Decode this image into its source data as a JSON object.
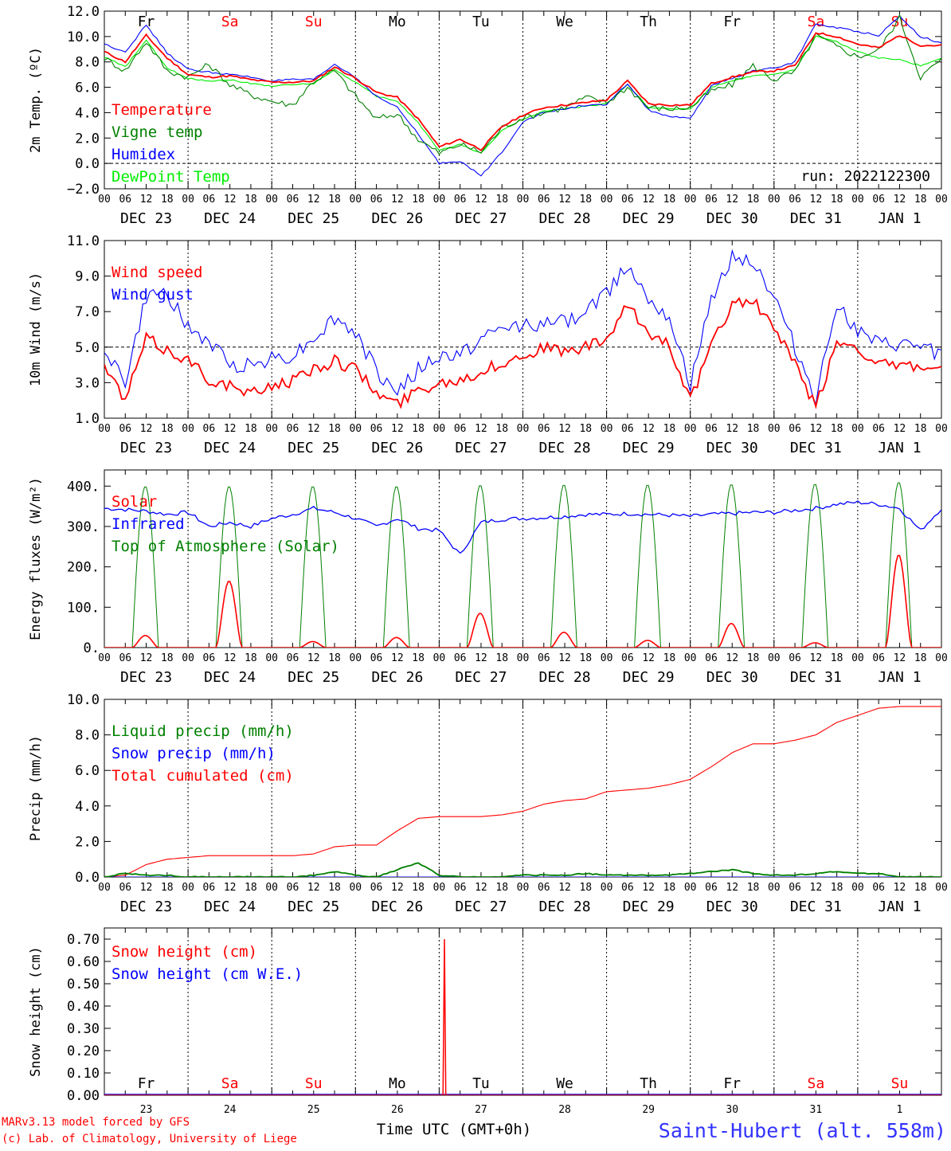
{
  "chart_data": [
    {
      "type": "line",
      "ylabel": "2m Temp. (ºC)",
      "ylim": [
        -2,
        12
      ],
      "yticks": [
        -2,
        0,
        2,
        4,
        6,
        8,
        10,
        12
      ],
      "ytick_labels": [
        "−2.0",
        "0.0",
        "2.0",
        "4.0",
        "6.0",
        "8.0",
        "10.0",
        "12.0"
      ],
      "dashed_reference": 0,
      "day_names_top": [
        "Fr",
        "Sa",
        "Su",
        "Mo",
        "Tu",
        "We",
        "Th",
        "Fr",
        "Sa",
        "Su"
      ],
      "weekend_color": "#ff0000",
      "annotation": "run: 2022122300",
      "x_hours": [
        0,
        6,
        12,
        18,
        24,
        30,
        36,
        42,
        48,
        54,
        60,
        66,
        72,
        78,
        84,
        90,
        96,
        102,
        108,
        114,
        120,
        126,
        132,
        138,
        144,
        150,
        156,
        162,
        168,
        174,
        180,
        186,
        192,
        198,
        204,
        210,
        216,
        222,
        228,
        234,
        240
      ],
      "series": [
        {
          "name": "Temperature",
          "color": "#ff0000",
          "values": [
            8.8,
            8.0,
            10.1,
            8.3,
            7.0,
            6.8,
            6.9,
            6.6,
            6.4,
            6.4,
            6.5,
            7.6,
            6.7,
            5.6,
            5.2,
            3.5,
            1.3,
            1.9,
            1.1,
            2.9,
            3.8,
            4.4,
            4.6,
            4.8,
            5.0,
            6.5,
            4.7,
            4.6,
            4.6,
            6.3,
            6.8,
            7.2,
            7.3,
            7.7,
            10.3,
            10.0,
            9.4,
            9.1,
            10.1,
            9.3,
            9.3
          ]
        },
        {
          "name": "Vigne temp",
          "color": "#008000",
          "values": [
            8.3,
            7.3,
            9.6,
            7.3,
            6.8,
            7.8,
            6.2,
            5.4,
            4.9,
            4.6,
            6.5,
            7.3,
            5.3,
            3.5,
            3.9,
            1.9,
            0.8,
            1.5,
            0.9,
            2.8,
            3.6,
            4.0,
            4.4,
            5.2,
            4.8,
            6.0,
            4.4,
            4.3,
            4.4,
            5.7,
            6.2,
            7.7,
            6.6,
            7.2,
            10.1,
            9.2,
            8.4,
            8.9,
            11.5,
            6.8,
            8.2
          ]
        },
        {
          "name": "Humidex",
          "color": "#0000ff",
          "values": [
            9.4,
            8.8,
            10.9,
            8.7,
            7.4,
            7.2,
            7.0,
            6.8,
            6.5,
            6.6,
            6.6,
            7.8,
            6.8,
            5.3,
            4.4,
            2.3,
            0.0,
            0.2,
            -1.0,
            0.9,
            3.3,
            4.0,
            4.3,
            4.6,
            4.6,
            6.3,
            4.2,
            3.7,
            3.5,
            6.1,
            6.7,
            7.3,
            7.5,
            8.0,
            11.0,
            10.7,
            10.4,
            10.1,
            11.6,
            10.0,
            9.5
          ]
        },
        {
          "name": "DewPoint Temp",
          "color": "#00ee00",
          "values": [
            8.4,
            7.6,
            9.7,
            7.5,
            6.7,
            6.5,
            6.6,
            6.3,
            6.1,
            6.2,
            6.3,
            7.4,
            6.4,
            5.3,
            4.9,
            3.2,
            1.0,
            1.5,
            0.8,
            2.6,
            3.5,
            4.1,
            4.3,
            4.5,
            4.7,
            6.2,
            4.4,
            4.3,
            4.3,
            6.0,
            6.5,
            6.9,
            7.0,
            7.4,
            10.0,
            9.6,
            8.8,
            8.3,
            8.2,
            7.7,
            8.3
          ]
        }
      ]
    },
    {
      "type": "line",
      "ylabel": "10m Wind (m/s)",
      "ylim": [
        1,
        11
      ],
      "yticks": [
        1,
        3,
        5,
        7,
        9,
        11
      ],
      "ytick_labels": [
        "1.0",
        "3.0",
        "5.0",
        "7.0",
        "9.0",
        "11.0"
      ],
      "dashed_reference": 5,
      "x_hours": [
        0,
        6,
        12,
        18,
        24,
        30,
        36,
        42,
        48,
        54,
        60,
        66,
        72,
        78,
        84,
        90,
        96,
        102,
        108,
        114,
        120,
        126,
        132,
        138,
        144,
        150,
        156,
        162,
        168,
        174,
        180,
        186,
        192,
        198,
        204,
        210,
        216,
        222,
        228,
        234,
        240
      ],
      "series": [
        {
          "name": "Wind speed",
          "color": "#ff0000",
          "values": [
            3.9,
            2.0,
            5.5,
            4.8,
            4.3,
            3.2,
            2.8,
            2.3,
            2.9,
            3.1,
            3.8,
            4.2,
            3.8,
            2.4,
            1.8,
            2.6,
            3.0,
            3.2,
            3.6,
            4.1,
            4.5,
            5.0,
            4.7,
            5.0,
            5.4,
            7.3,
            5.8,
            5.2,
            2.0,
            5.0,
            7.5,
            7.6,
            6.1,
            4.0,
            1.6,
            5.3,
            5.0,
            4.0,
            3.9,
            3.9,
            3.6
          ]
        },
        {
          "name": "Wind gust",
          "color": "#0000ff",
          "values": [
            5.0,
            3.0,
            7.8,
            8.1,
            6.0,
            5.3,
            4.0,
            4.0,
            4.4,
            4.5,
            5.5,
            6.6,
            5.8,
            3.6,
            2.5,
            3.7,
            4.4,
            4.6,
            5.4,
            6.0,
            6.3,
            6.3,
            6.4,
            7.1,
            8.0,
            9.7,
            7.8,
            6.8,
            2.8,
            7.6,
            10.2,
            9.8,
            7.8,
            5.0,
            2.1,
            7.5,
            5.8,
            5.1,
            5.1,
            5.0,
            4.6
          ]
        }
      ]
    },
    {
      "type": "line",
      "ylabel": "Energy fluxes (W/m²)",
      "ylim": [
        0,
        440
      ],
      "yticks": [
        0,
        100,
        200,
        300,
        400
      ],
      "ytick_labels": [
        "0.",
        "100.",
        "200.",
        "300.",
        "400."
      ],
      "infrared_hours": [
        0,
        6,
        12,
        18,
        24,
        30,
        36,
        42,
        48,
        54,
        60,
        66,
        72,
        78,
        84,
        90,
        96,
        102,
        108,
        114,
        120,
        126,
        132,
        138,
        144,
        150,
        156,
        162,
        168,
        174,
        180,
        186,
        192,
        198,
        204,
        210,
        216,
        222,
        228,
        234,
        240
      ],
      "series": [
        {
          "name": "Solar",
          "color": "#ff0000",
          "daily_peaks": [
            30,
            165,
            15,
            25,
            85,
            38,
            18,
            60,
            12,
            230
          ]
        },
        {
          "name": "Infrared",
          "color": "#0000ff",
          "values": [
            345,
            342,
            338,
            330,
            335,
            300,
            310,
            300,
            320,
            330,
            345,
            335,
            320,
            300,
            320,
            295,
            290,
            230,
            310,
            318,
            320,
            322,
            325,
            330,
            330,
            332,
            330,
            328,
            325,
            330,
            332,
            335,
            335,
            340,
            345,
            355,
            360,
            355,
            345,
            290,
            345
          ]
        },
        {
          "name": "Top of Atmosphere (Solar)",
          "color": "#008000",
          "daily_peaks": [
            400,
            400,
            400,
            400,
            403,
            404,
            404,
            405,
            406,
            410
          ]
        }
      ]
    },
    {
      "type": "line",
      "ylabel": "Precip (mm/h)",
      "ylim": [
        0,
        10
      ],
      "yticks": [
        0,
        2,
        4,
        6,
        8,
        10
      ],
      "ytick_labels": [
        "0.0",
        "2.0",
        "4.0",
        "6.0",
        "8.0",
        "10.0"
      ],
      "x_hours": [
        0,
        6,
        12,
        18,
        24,
        30,
        36,
        42,
        48,
        54,
        60,
        66,
        72,
        78,
        84,
        90,
        96,
        102,
        108,
        114,
        120,
        126,
        132,
        138,
        144,
        150,
        156,
        162,
        168,
        174,
        180,
        186,
        192,
        198,
        204,
        210,
        216,
        222,
        228,
        234,
        240
      ],
      "series": [
        {
          "name": "Liquid precip (mm/h)",
          "color": "#008000",
          "values": [
            0.0,
            0.2,
            0.1,
            0.1,
            0.0,
            0.0,
            0.0,
            0.0,
            0.0,
            0.0,
            0.1,
            0.3,
            0.1,
            0.0,
            0.4,
            0.8,
            0.1,
            0.0,
            0.0,
            0.0,
            0.1,
            0.1,
            0.1,
            0.2,
            0.1,
            0.1,
            0.1,
            0.1,
            0.2,
            0.3,
            0.4,
            0.2,
            0.1,
            0.1,
            0.2,
            0.3,
            0.2,
            0.2,
            0.0,
            0.0,
            0.0
          ]
        },
        {
          "name": "Snow precip (mm/h)",
          "color": "#0000ff",
          "values": [
            0,
            0,
            0,
            0,
            0,
            0,
            0,
            0,
            0,
            0,
            0,
            0,
            0,
            0,
            0,
            0,
            0,
            0,
            0,
            0,
            0,
            0,
            0,
            0,
            0,
            0,
            0,
            0,
            0,
            0,
            0,
            0,
            0,
            0,
            0,
            0,
            0,
            0,
            0,
            0,
            0
          ]
        },
        {
          "name": "Total cumulated (cm)",
          "color": "#ff0000",
          "values": [
            0.0,
            0.1,
            0.7,
            1.0,
            1.1,
            1.2,
            1.2,
            1.2,
            1.2,
            1.2,
            1.3,
            1.7,
            1.8,
            1.8,
            2.6,
            3.3,
            3.4,
            3.4,
            3.4,
            3.5,
            3.7,
            4.1,
            4.3,
            4.4,
            4.8,
            4.9,
            5.0,
            5.2,
            5.5,
            6.2,
            7.0,
            7.5,
            7.5,
            7.7,
            8.0,
            8.7,
            9.1,
            9.5,
            9.6,
            9.6,
            9.6
          ]
        }
      ]
    },
    {
      "type": "line",
      "ylabel": "Snow height (cm)",
      "ylim": [
        0,
        0.75
      ],
      "yticks": [
        0,
        0.1,
        0.2,
        0.3,
        0.4,
        0.5,
        0.6,
        0.7
      ],
      "ytick_labels": [
        "0.00",
        "0.10",
        "0.20",
        "0.30",
        "0.40",
        "0.50",
        "0.60",
        "0.70"
      ],
      "day_names_bottom": [
        "Fr",
        "Sa",
        "Su",
        "Mo",
        "Tu",
        "We",
        "Th",
        "Fr",
        "Sa",
        "Su"
      ],
      "day_numbers": [
        "23",
        "24",
        "25",
        "26",
        "27",
        "28",
        "29",
        "30",
        "31",
        "1"
      ],
      "xlabel": "Time UTC (GMT+0h)",
      "series": [
        {
          "name": "Snow height (cm)",
          "color": "#ff0000",
          "spike": {
            "hour": 97.5,
            "value": 0.7
          }
        },
        {
          "name": "Snow height (cm W.E.)",
          "color": "#0000ff",
          "values": [
            0
          ]
        }
      ]
    }
  ],
  "x_axis": {
    "hour_labels": [
      "00",
      "06",
      "12",
      "18"
    ],
    "final_label": "00",
    "date_labels": [
      "DEC 23",
      "DEC 24",
      "DEC 25",
      "DEC 26",
      "DEC 27",
      "DEC 28",
      "DEC 29",
      "DEC 30",
      "DEC 31",
      "JAN  1"
    ]
  },
  "footer": {
    "credit_line1": "MARv3.13 model forced by GFS",
    "credit_line2": "(c) Lab. of Climatology, University of Liege",
    "station": "Saint-Hubert (alt. 558m)",
    "credit_color": "#ff0000",
    "station_color": "#3333ff"
  }
}
